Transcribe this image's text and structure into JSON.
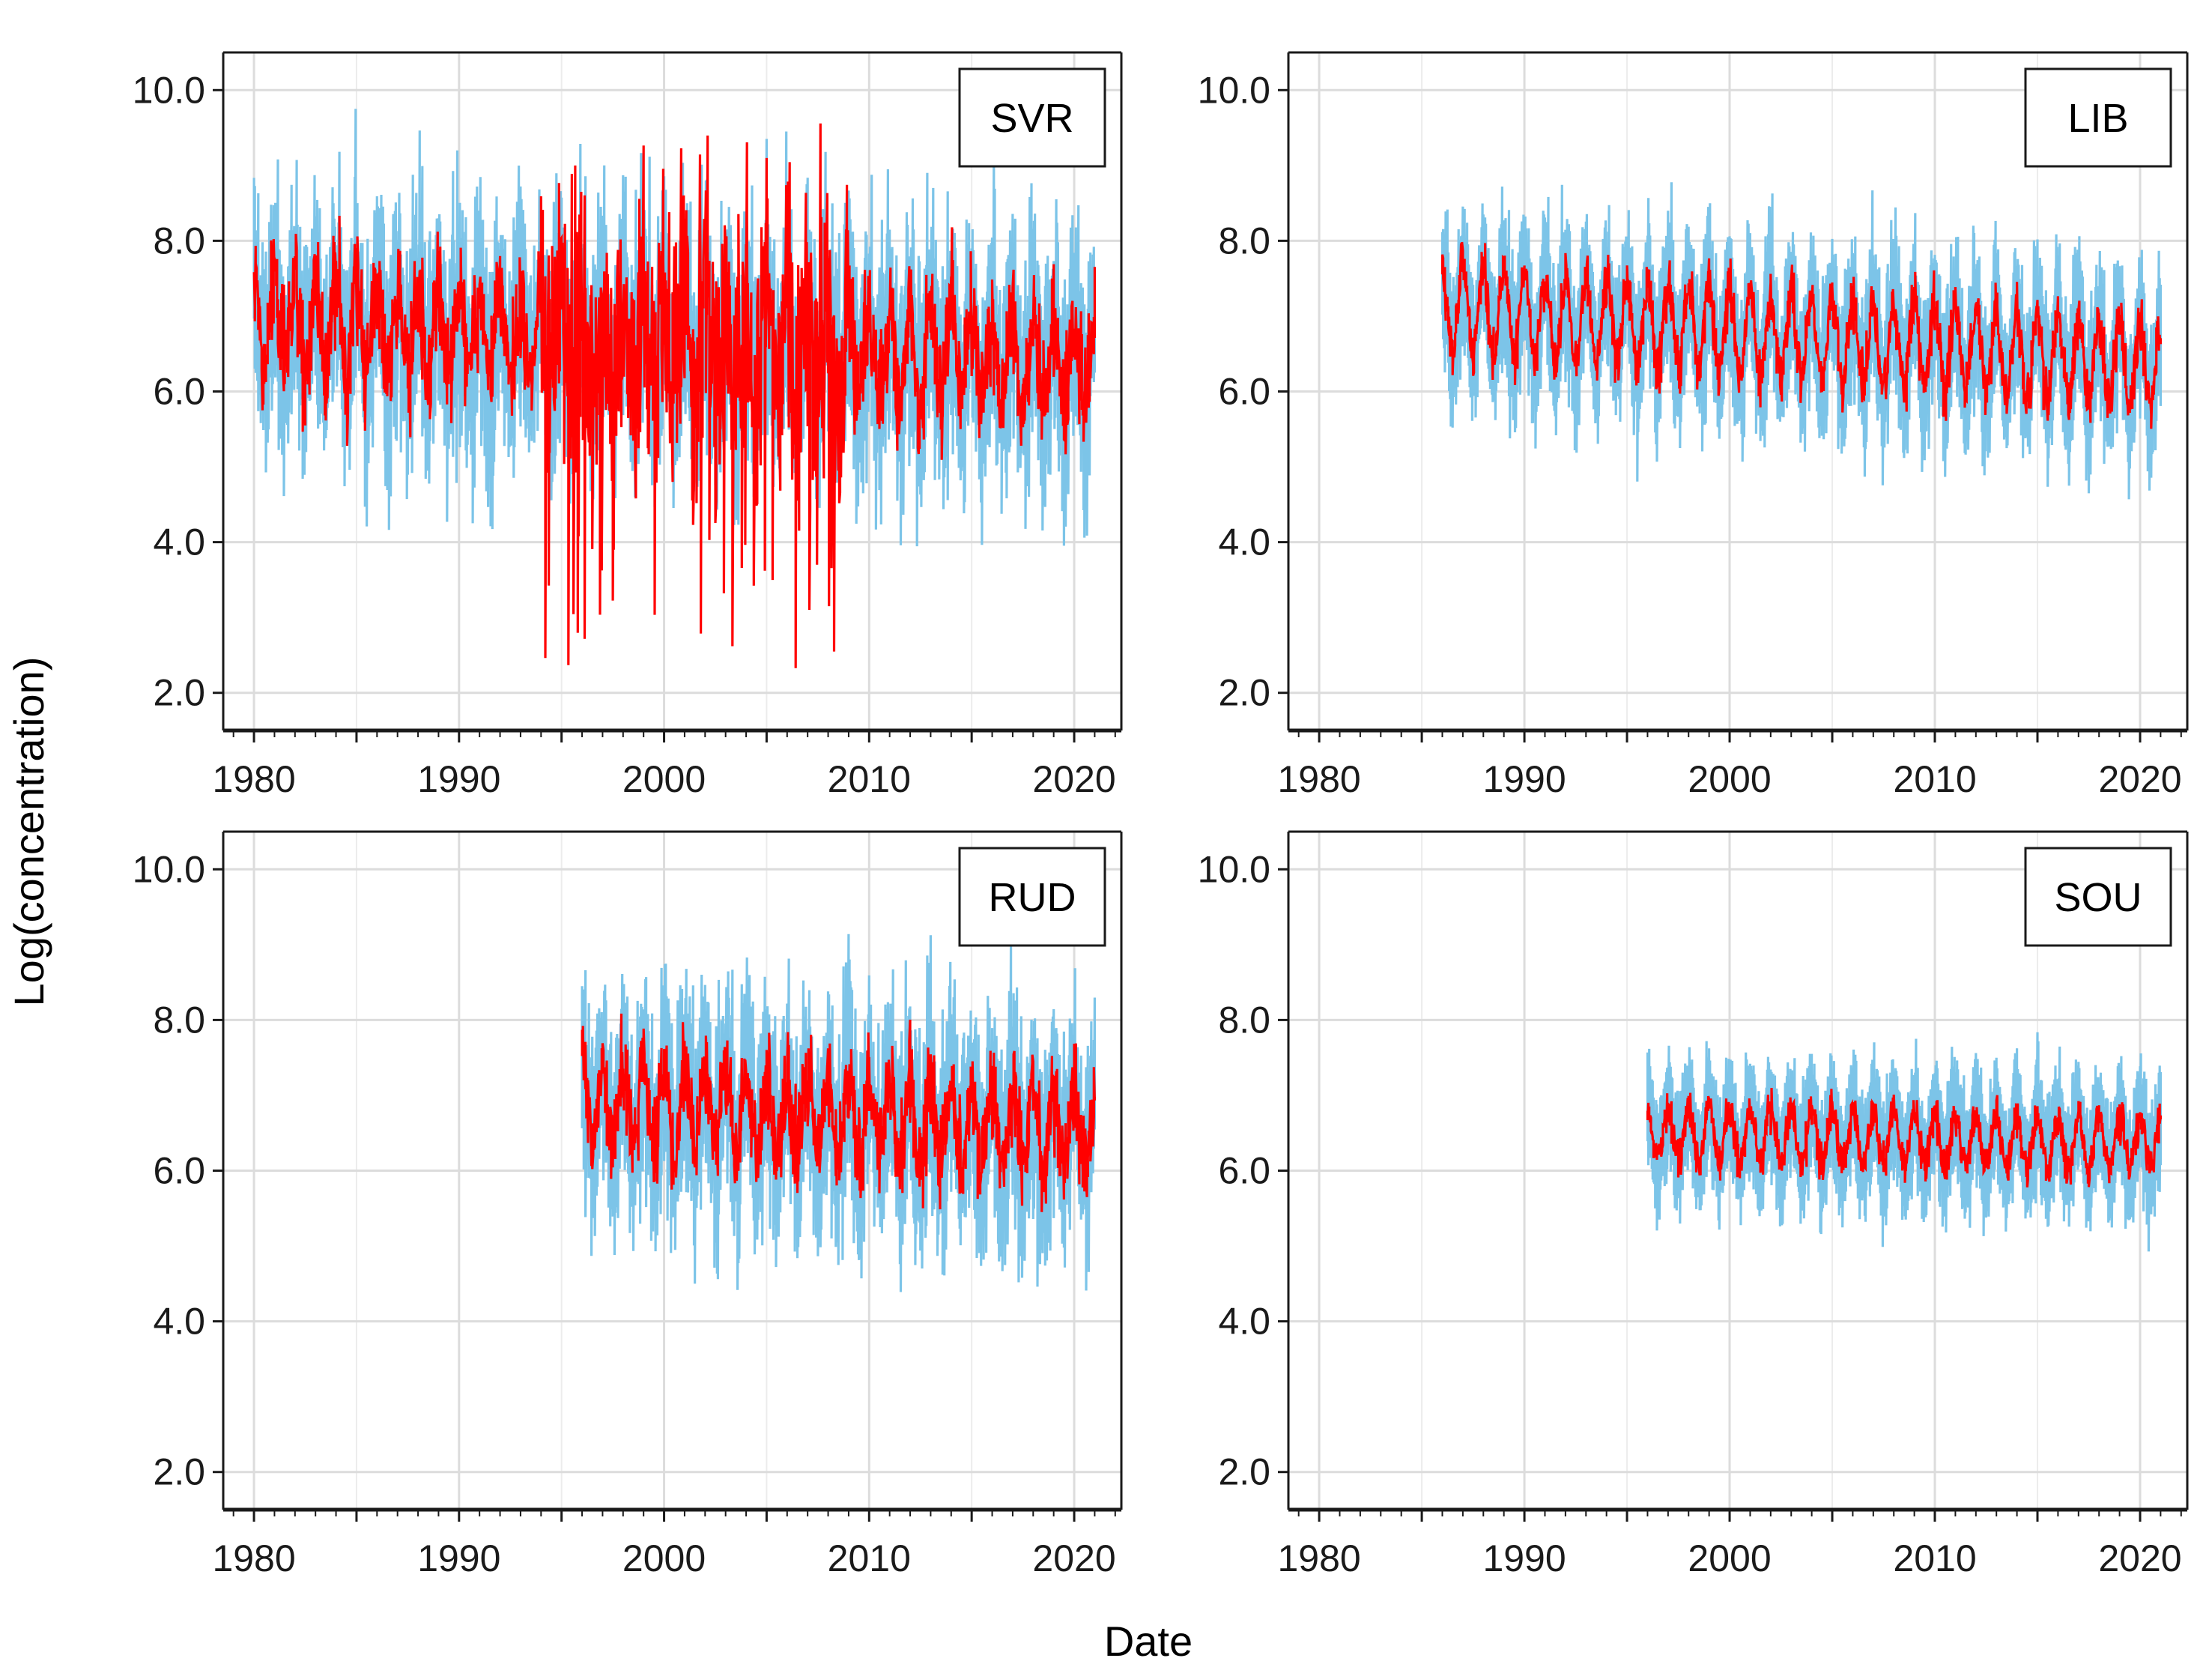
{
  "chart_data": {
    "type": "line",
    "xlabel": "Date",
    "ylabel": "Log(concentration)",
    "xlim": [
      1978.5,
      2022.3
    ],
    "ylim": [
      1.5,
      10.5
    ],
    "x_ticks": [
      1980,
      1990,
      2000,
      2010,
      2020
    ],
    "y_ticks": [
      2.0,
      4.0,
      6.0,
      8.0,
      10.0
    ],
    "x_tick_labels": [
      "1980",
      "1990",
      "2000",
      "2010",
      "2020"
    ],
    "y_tick_labels": [
      "2.0",
      "4.0",
      "6.0",
      "8.0",
      "10.0"
    ],
    "grid": true,
    "series_colors": {
      "outer": "#7cc4e8",
      "inner": "#ff0000"
    },
    "panels": [
      {
        "label": "SVR",
        "start": 1980,
        "end": 2021,
        "center": 6.9,
        "trend": -0.012,
        "season_amp": 0.55,
        "outer_spread": 1.55,
        "inner_spread": 0.75,
        "noisy_period": [
          1994,
          2009
        ],
        "min_dips": 2.3
      },
      {
        "label": "LIB",
        "start": 1986,
        "end": 2021,
        "center": 7.1,
        "trend": -0.022,
        "season_amp": 0.55,
        "outer_spread": 0.85,
        "inner_spread": 0.35
      },
      {
        "label": "RUD",
        "start": 1996,
        "end": 2021,
        "center": 6.9,
        "trend": -0.015,
        "season_amp": 0.5,
        "outer_spread": 1.35,
        "inner_spread": 0.6
      },
      {
        "label": "SOU",
        "start": 1996,
        "end": 2021,
        "center": 6.5,
        "trend": -0.006,
        "season_amp": 0.35,
        "outer_spread": 0.55,
        "inner_spread": 0.25
      }
    ]
  }
}
